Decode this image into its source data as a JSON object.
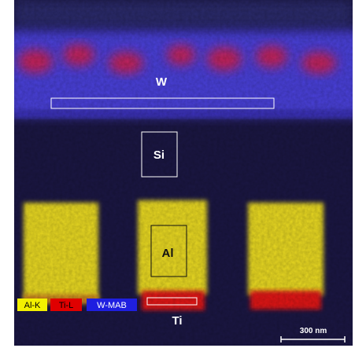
{
  "labels": {
    "w": "W",
    "si": "Si",
    "al": "Al",
    "ti": "Ti"
  },
  "legend": [
    {
      "label": "Al-K"
    },
    {
      "label": "Ti-L"
    },
    {
      "label": "W-MAB"
    }
  ],
  "scale_bar": {
    "label": "300 nm"
  }
}
